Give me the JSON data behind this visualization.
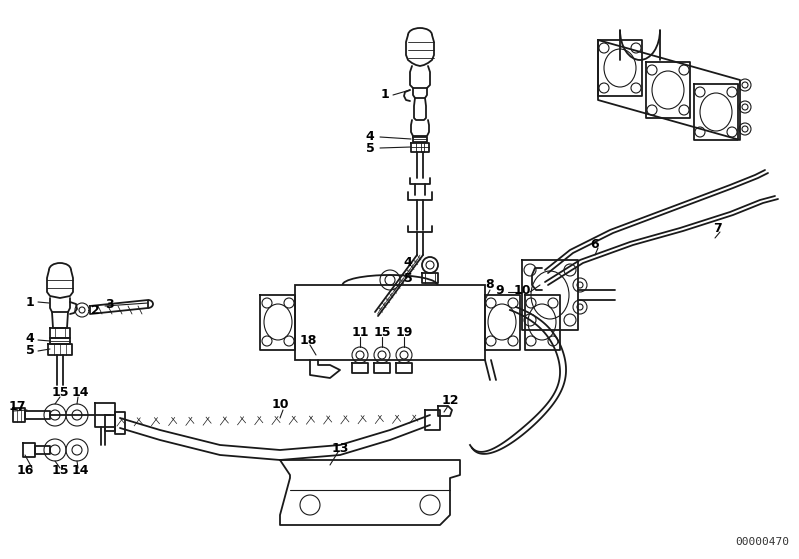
{
  "bg_color": "#ffffff",
  "line_color": "#1a1a1a",
  "label_color": "#000000",
  "doc_number": "00000470",
  "fig_width": 7.99,
  "fig_height": 5.59,
  "dpi": 100
}
